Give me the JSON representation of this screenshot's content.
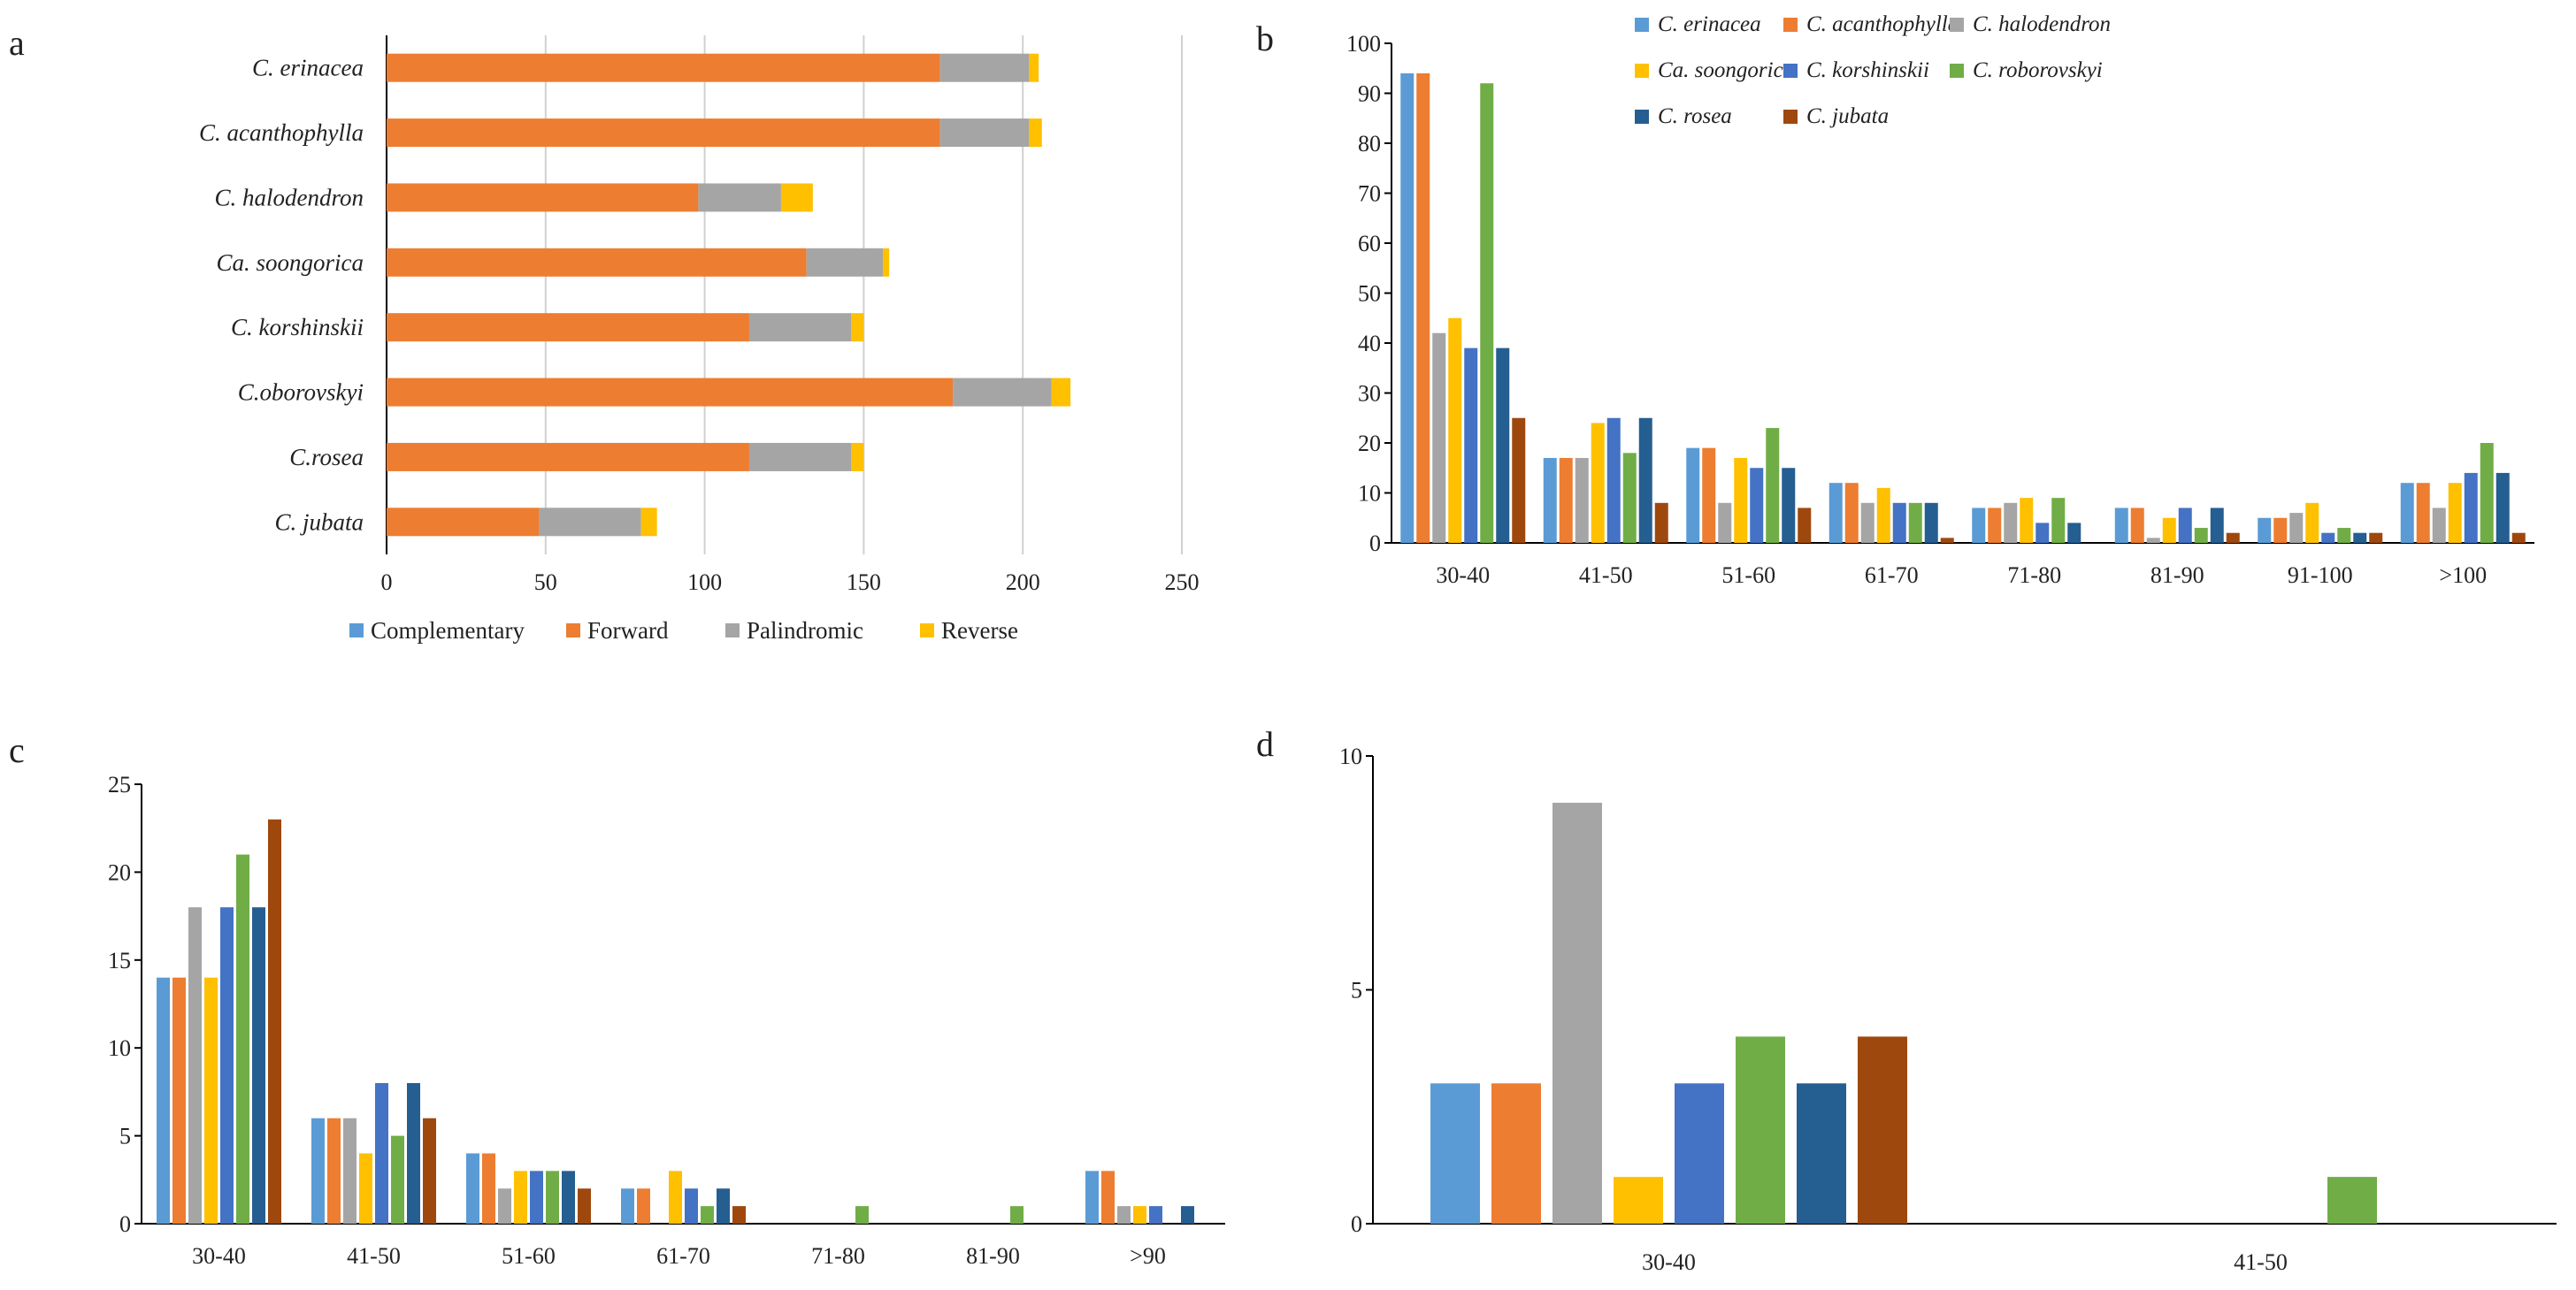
{
  "panel_labels": {
    "a": "a",
    "b": "b",
    "c": "c",
    "d": "d"
  },
  "species_legend": [
    {
      "name": "C. erinacea",
      "color": "#5B9BD5"
    },
    {
      "name": "C. acanthophylla",
      "color": "#ED7D31"
    },
    {
      "name": "C. halodendron",
      "color": "#A5A5A5"
    },
    {
      "name": "Ca. soongorica",
      "color": "#FFC000"
    },
    {
      "name": "C. korshinskii",
      "color": "#4472C4"
    },
    {
      "name": "C. roborovskyi",
      "color": "#70AD47"
    },
    {
      "name": "C. rosea",
      "color": "#255E91"
    },
    {
      "name": "C. jubata",
      "color": "#9E480E"
    }
  ],
  "chart_data": [
    {
      "id": "a",
      "type": "bar",
      "orientation": "horizontal",
      "stacked": true,
      "title": "",
      "categories": [
        "C. erinacea",
        "C. acanthophylla",
        "C. halodendron",
        "Ca. soongorica",
        "C. korshinskii",
        "C.oborovskyi",
        "C.rosea",
        "C. jubata"
      ],
      "series": [
        {
          "name": "Complementary",
          "color": "#5B9BD5",
          "values": [
            0,
            0,
            0,
            0,
            0,
            0,
            0,
            0
          ]
        },
        {
          "name": "Forward",
          "color": "#ED7D31",
          "values": [
            174,
            174,
            98,
            132,
            114,
            178,
            114,
            48
          ]
        },
        {
          "name": "Palindromic",
          "color": "#A5A5A5",
          "values": [
            28,
            28,
            26,
            24,
            32,
            31,
            32,
            32
          ]
        },
        {
          "name": "Reverse",
          "color": "#FFC000",
          "values": [
            3,
            4,
            10,
            2,
            4,
            6,
            4,
            5
          ]
        }
      ],
      "xlim": [
        0,
        250
      ],
      "xticks": [
        "0",
        "50",
        "100",
        "150",
        "200",
        "250"
      ],
      "grid": true,
      "legend": "bottom"
    },
    {
      "id": "b",
      "type": "bar",
      "categories": [
        "30-40",
        "41-50",
        "51-60",
        "61-70",
        "71-80",
        "81-90",
        "91-100",
        ">100"
      ],
      "series": [
        {
          "name": "C. erinacea",
          "values": [
            94,
            17,
            19,
            12,
            7,
            7,
            5,
            12
          ]
        },
        {
          "name": "C. acanthophylla",
          "values": [
            94,
            17,
            19,
            12,
            7,
            7,
            5,
            12
          ]
        },
        {
          "name": "C. halodendron",
          "values": [
            42,
            17,
            8,
            8,
            8,
            1,
            6,
            7
          ]
        },
        {
          "name": "Ca. soongorica",
          "values": [
            45,
            24,
            17,
            11,
            9,
            5,
            8,
            12
          ]
        },
        {
          "name": "C. korshinskii",
          "values": [
            39,
            25,
            15,
            8,
            4,
            7,
            2,
            14
          ]
        },
        {
          "name": "C. roborovskyi",
          "values": [
            92,
            18,
            23,
            8,
            9,
            3,
            3,
            20
          ]
        },
        {
          "name": "C. rosea",
          "values": [
            39,
            25,
            15,
            8,
            4,
            7,
            2,
            14
          ]
        },
        {
          "name": "C. jubata",
          "values": [
            25,
            8,
            7,
            1,
            0,
            2,
            2,
            2
          ]
        }
      ],
      "ylim": [
        0,
        100
      ],
      "yticks": [
        "0",
        "10",
        "20",
        "30",
        "40",
        "50",
        "60",
        "70",
        "80",
        "90",
        "100"
      ],
      "grid": false,
      "legend": "top-right"
    },
    {
      "id": "c",
      "type": "bar",
      "categories": [
        "30-40",
        "41-50",
        "51-60",
        "61-70",
        "71-80",
        "81-90",
        ">90"
      ],
      "series": [
        {
          "name": "C. erinacea",
          "values": [
            14,
            6,
            4,
            2,
            0,
            0,
            3
          ]
        },
        {
          "name": "C. acanthophylla",
          "values": [
            14,
            6,
            4,
            2,
            0,
            0,
            3
          ]
        },
        {
          "name": "C. halodendron",
          "values": [
            18,
            6,
            2,
            0,
            0,
            0,
            1
          ]
        },
        {
          "name": "Ca. soongorica",
          "values": [
            14,
            4,
            3,
            3,
            0,
            0,
            1
          ]
        },
        {
          "name": "C. korshinskii",
          "values": [
            18,
            8,
            3,
            2,
            0,
            0,
            1
          ]
        },
        {
          "name": "C. roborovskyi",
          "values": [
            21,
            5,
            3,
            1,
            1,
            1,
            0
          ]
        },
        {
          "name": "C. rosea",
          "values": [
            18,
            8,
            3,
            2,
            0,
            0,
            1
          ]
        },
        {
          "name": "C. jubata",
          "values": [
            23,
            6,
            2,
            1,
            0,
            0,
            0
          ]
        }
      ],
      "ylim": [
        0,
        25
      ],
      "yticks": [
        "0",
        "5",
        "10",
        "15",
        "20",
        "25"
      ],
      "grid": false,
      "legend": "none"
    },
    {
      "id": "d",
      "type": "bar",
      "categories": [
        "30-40",
        "41-50"
      ],
      "series": [
        {
          "name": "C. erinacea",
          "values": [
            3,
            0
          ]
        },
        {
          "name": "C. acanthophylla",
          "values": [
            3,
            0
          ]
        },
        {
          "name": "C. halodendron",
          "values": [
            9,
            0
          ]
        },
        {
          "name": "Ca. soongorica",
          "values": [
            1,
            0
          ]
        },
        {
          "name": "C. korshinskii",
          "values": [
            3,
            0
          ]
        },
        {
          "name": "C. roborovskyi",
          "values": [
            4,
            1
          ]
        },
        {
          "name": "C. rosea",
          "values": [
            3,
            0
          ]
        },
        {
          "name": "C. jubata",
          "values": [
            4,
            0
          ]
        }
      ],
      "ylim": [
        0,
        10
      ],
      "yticks": [
        "0",
        "5",
        "10"
      ],
      "grid": false,
      "legend": "none"
    }
  ]
}
